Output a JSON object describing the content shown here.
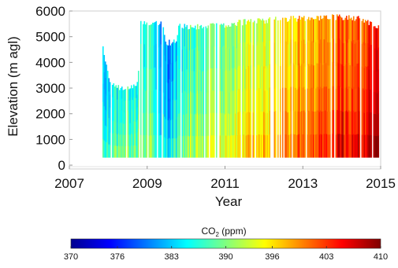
{
  "chart_data": {
    "type": "heatmap",
    "xlabel": "Year",
    "ylabel": "Elevation (m agl)",
    "x_ticks": [
      2007,
      2009,
      2011,
      2013,
      2015
    ],
    "x_tick_labels": [
      "2007",
      "2009",
      "2011",
      "2013",
      "2015"
    ],
    "y_ticks": [
      0,
      1000,
      2000,
      3000,
      4000,
      5000,
      6000
    ],
    "y_tick_labels": [
      "0",
      "1000",
      "2000",
      "3000",
      "4000",
      "5000",
      "6000"
    ],
    "xlim": [
      2007,
      2015
    ],
    "ylim": [
      -150,
      6000
    ],
    "grid": false,
    "colorbar": {
      "label_text": "CO",
      "label_subscript": "2",
      "label_units": " (ppm)",
      "ticks": [
        370,
        376,
        383,
        390,
        396,
        403,
        410
      ],
      "tick_labels": [
        "370",
        "376",
        "383",
        "390",
        "396",
        "403",
        "410"
      ],
      "range": [
        370,
        410
      ],
      "colormap": [
        "#00008f",
        "#0000ff",
        "#007fff",
        "#00ffff",
        "#7fff7f",
        "#ffff00",
        "#ff7f00",
        "#ff0000",
        "#7f0000"
      ],
      "placement": "bottom"
    },
    "profiles": {
      "year_start": 2007.85,
      "year_end": 2014.97,
      "floor_m": 300,
      "ceiling": [
        {
          "year": 2007.85,
          "elev_m": 4700
        },
        {
          "year": 2008.05,
          "elev_m": 3200
        },
        {
          "year": 2008.5,
          "elev_m": 3150
        },
        {
          "year": 2008.75,
          "elev_m": 3300
        },
        {
          "year": 2008.8,
          "elev_m": 5700
        },
        {
          "year": 2009.4,
          "elev_m": 5600
        },
        {
          "year": 2009.45,
          "elev_m": 4900
        },
        {
          "year": 2009.75,
          "elev_m": 4900
        },
        {
          "year": 2009.8,
          "elev_m": 5550
        },
        {
          "year": 2010.5,
          "elev_m": 5500
        },
        {
          "year": 2011.5,
          "elev_m": 5700
        },
        {
          "year": 2012.5,
          "elev_m": 5800
        },
        {
          "year": 2013.6,
          "elev_m": 5900
        },
        {
          "year": 2014.5,
          "elev_m": 5800
        },
        {
          "year": 2014.97,
          "elev_m": 5500
        }
      ],
      "co2_trend": [
        {
          "year": 2007.85,
          "ppm": 383
        },
        {
          "year": 2008.4,
          "ppm": 386
        },
        {
          "year": 2009.1,
          "ppm": 387
        },
        {
          "year": 2009.5,
          "ppm": 380
        },
        {
          "year": 2010.0,
          "ppm": 387
        },
        {
          "year": 2010.8,
          "ppm": 390
        },
        {
          "year": 2011.5,
          "ppm": 392
        },
        {
          "year": 2012.0,
          "ppm": 394
        },
        {
          "year": 2012.5,
          "ppm": 395
        },
        {
          "year": 2013.0,
          "ppm": 397
        },
        {
          "year": 2013.5,
          "ppm": 399
        },
        {
          "year": 2014.0,
          "ppm": 401
        },
        {
          "year": 2014.5,
          "ppm": 403
        },
        {
          "year": 2014.97,
          "ppm": 404
        }
      ],
      "low_altitude_enhancement_ppm": 4
    }
  }
}
